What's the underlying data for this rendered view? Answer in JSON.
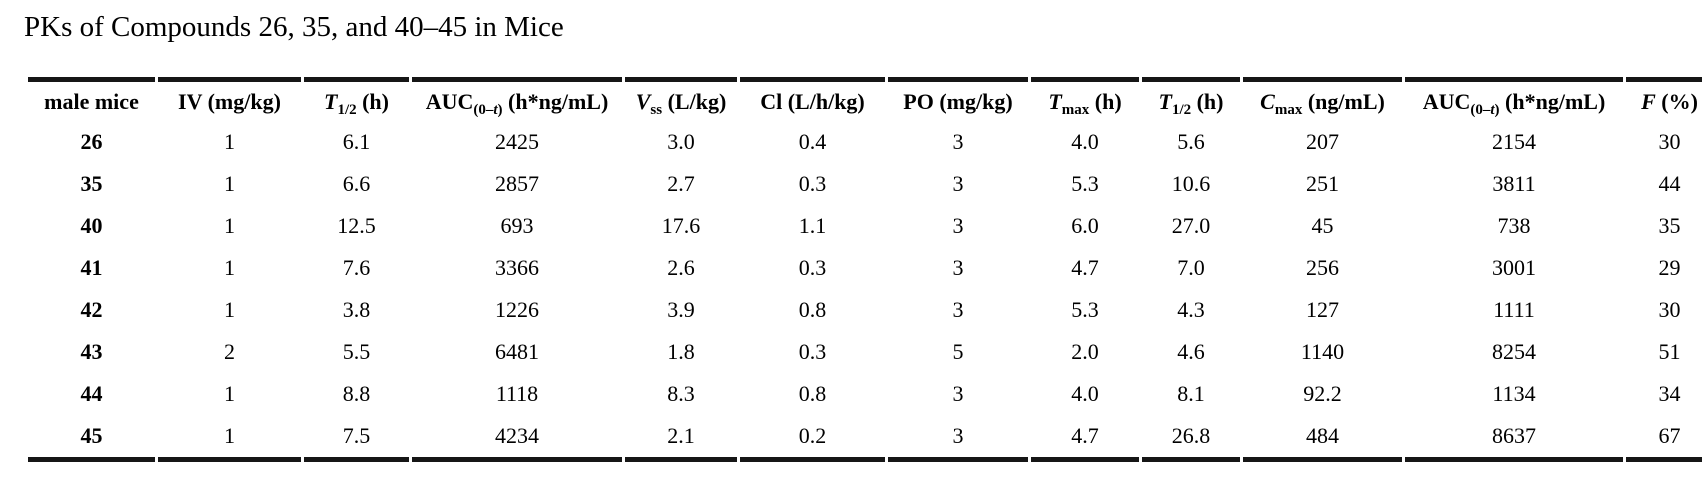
{
  "title": "PKs of Compounds 26, 35, and 40–45 in Mice",
  "colors": {
    "background": "#ffffff",
    "text": "#000000",
    "rule": "#161616"
  },
  "table": {
    "columns": [
      {
        "label": "male mice"
      },
      {
        "label": "IV (mg/kg)"
      },
      {
        "sym": "T",
        "sub": "1/2",
        "unit": " (h)"
      },
      {
        "sym": "AUC",
        "sub_pre": "(0–",
        "sub_it": "t",
        "sub_post": ")",
        "unit": " (h*ng/mL)"
      },
      {
        "sym": "V",
        "sub": "ss",
        "unit": " (L/kg)"
      },
      {
        "label": "Cl (L/h/kg)"
      },
      {
        "label": "PO (mg/kg)"
      },
      {
        "sym": "T",
        "sub": "max",
        "unit": " (h)"
      },
      {
        "sym": "T",
        "sub": "1/2",
        "unit": " (h)"
      },
      {
        "sym": "C",
        "sub": "max",
        "unit": " (ng/mL)"
      },
      {
        "sym": "AUC",
        "sub_pre": "(0–",
        "sub_it": "t",
        "sub_post": ")",
        "unit": " (h*ng/mL)"
      },
      {
        "sym": "F",
        "unit": " (%)"
      }
    ],
    "rows": [
      {
        "compound": "26",
        "values": [
          "1",
          "6.1",
          "2425",
          "3.0",
          "0.4",
          "3",
          "4.0",
          "5.6",
          "207",
          "2154",
          "30"
        ]
      },
      {
        "compound": "35",
        "values": [
          "1",
          "6.6",
          "2857",
          "2.7",
          "0.3",
          "3",
          "5.3",
          "10.6",
          "251",
          "3811",
          "44"
        ]
      },
      {
        "compound": "40",
        "values": [
          "1",
          "12.5",
          "693",
          "17.6",
          "1.1",
          "3",
          "6.0",
          "27.0",
          "45",
          "738",
          "35"
        ]
      },
      {
        "compound": "41",
        "values": [
          "1",
          "7.6",
          "3366",
          "2.6",
          "0.3",
          "3",
          "4.7",
          "7.0",
          "256",
          "3001",
          "29"
        ]
      },
      {
        "compound": "42",
        "values": [
          "1",
          "3.8",
          "1226",
          "3.9",
          "0.8",
          "3",
          "5.3",
          "4.3",
          "127",
          "1111",
          "30"
        ]
      },
      {
        "compound": "43",
        "values": [
          "2",
          "5.5",
          "6481",
          "1.8",
          "0.3",
          "5",
          "2.0",
          "4.6",
          "1140",
          "8254",
          "51"
        ]
      },
      {
        "compound": "44",
        "values": [
          "1",
          "8.8",
          "1118",
          "8.3",
          "0.8",
          "3",
          "4.0",
          "8.1",
          "92.2",
          "1134",
          "34"
        ]
      },
      {
        "compound": "45",
        "values": [
          "1",
          "7.5",
          "4234",
          "2.1",
          "0.2",
          "3",
          "4.7",
          "26.8",
          "484",
          "8637",
          "67"
        ]
      }
    ]
  }
}
